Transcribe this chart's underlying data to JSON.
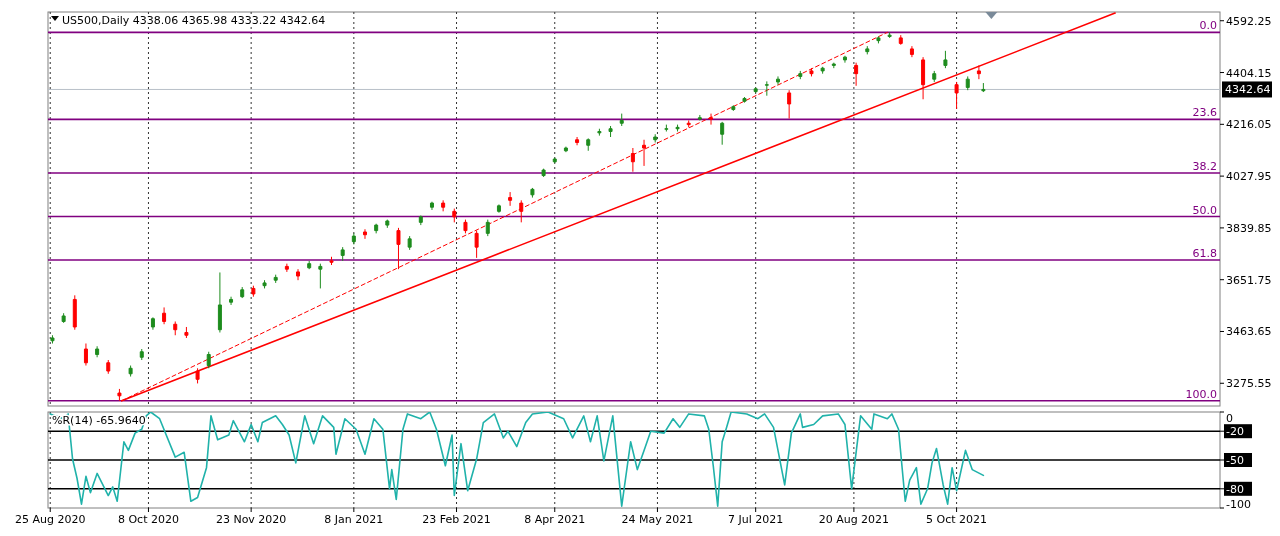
{
  "chart_data": [
    {
      "type": "candlestick",
      "title": "US500,Daily  4338.06 4365.98 4333.22 4342.64",
      "x": [
        "2020-08-26",
        "2020-08-31",
        "2020-09-05",
        "2020-09-10",
        "2020-09-15",
        "2020-09-20",
        "2020-09-25",
        "2020-09-30",
        "2020-10-05",
        "2020-10-10",
        "2020-10-15",
        "2020-10-20",
        "2020-10-25",
        "2020-10-30",
        "2020-11-04",
        "2020-11-09",
        "2020-11-14",
        "2020-11-19",
        "2020-11-24",
        "2020-11-29",
        "2020-12-04",
        "2020-12-09",
        "2020-12-14",
        "2020-12-19",
        "2020-12-24",
        "2020-12-29",
        "2021-01-03",
        "2021-01-08",
        "2021-01-13",
        "2021-01-18",
        "2021-01-23",
        "2021-01-28",
        "2021-02-02",
        "2021-02-07",
        "2021-02-12",
        "2021-02-17",
        "2021-02-22",
        "2021-02-27",
        "2021-03-04",
        "2021-03-09",
        "2021-03-14",
        "2021-03-19",
        "2021-03-24",
        "2021-03-29",
        "2021-04-03",
        "2021-04-08",
        "2021-04-13",
        "2021-04-18",
        "2021-04-23",
        "2021-04-28",
        "2021-05-03",
        "2021-05-08",
        "2021-05-13",
        "2021-05-18",
        "2021-05-23",
        "2021-05-28",
        "2021-06-02",
        "2021-06-07",
        "2021-06-12",
        "2021-06-17",
        "2021-06-22",
        "2021-06-27",
        "2021-07-02",
        "2021-07-07",
        "2021-07-12",
        "2021-07-17",
        "2021-07-22",
        "2021-07-27",
        "2021-08-01",
        "2021-08-06",
        "2021-08-11",
        "2021-08-16",
        "2021-08-21",
        "2021-08-26",
        "2021-08-31",
        "2021-09-05",
        "2021-09-10",
        "2021-09-15",
        "2021-09-20",
        "2021-09-25",
        "2021-09-30",
        "2021-10-05",
        "2021-10-10",
        "2021-10-15",
        "2021-10-17"
      ],
      "ohlc": [
        [
          3430,
          3450,
          3420,
          3440
        ],
        [
          3500,
          3530,
          3495,
          3520
        ],
        [
          3580,
          3595,
          3470,
          3480
        ],
        [
          3400,
          3420,
          3340,
          3350
        ],
        [
          3380,
          3410,
          3370,
          3400
        ],
        [
          3350,
          3360,
          3310,
          3320
        ],
        [
          3240,
          3255,
          3212,
          3230
        ],
        [
          3310,
          3340,
          3300,
          3330
        ],
        [
          3370,
          3400,
          3360,
          3390
        ],
        [
          3480,
          3515,
          3470,
          3510
        ],
        [
          3530,
          3551,
          3490,
          3500
        ],
        [
          3490,
          3500,
          3450,
          3470
        ],
        [
          3460,
          3480,
          3440,
          3450
        ],
        [
          3320,
          3330,
          3275,
          3290
        ],
        [
          3340,
          3390,
          3330,
          3380
        ],
        [
          3470,
          3678,
          3460,
          3560
        ],
        [
          3570,
          3590,
          3560,
          3580
        ],
        [
          3590,
          3625,
          3585,
          3615
        ],
        [
          3620,
          3630,
          3590,
          3600
        ],
        [
          3630,
          3650,
          3620,
          3640
        ],
        [
          3650,
          3670,
          3640,
          3660
        ],
        [
          3700,
          3710,
          3680,
          3690
        ],
        [
          3680,
          3690,
          3650,
          3665
        ],
        [
          3695,
          3720,
          3690,
          3710
        ],
        [
          3690,
          3710,
          3620,
          3700
        ],
        [
          3720,
          3735,
          3705,
          3715
        ],
        [
          3740,
          3770,
          3720,
          3760
        ],
        [
          3790,
          3820,
          3780,
          3810
        ],
        [
          3825,
          3835,
          3800,
          3815
        ],
        [
          3830,
          3855,
          3820,
          3850
        ],
        [
          3850,
          3870,
          3840,
          3865
        ],
        [
          3830,
          3840,
          3690,
          3780
        ],
        [
          3770,
          3810,
          3760,
          3800
        ],
        [
          3860,
          3885,
          3850,
          3880
        ],
        [
          3915,
          3935,
          3905,
          3930
        ],
        [
          3930,
          3940,
          3900,
          3915
        ],
        [
          3900,
          3910,
          3860,
          3880
        ],
        [
          3860,
          3870,
          3820,
          3830
        ],
        [
          3820,
          3830,
          3731,
          3770
        ],
        [
          3820,
          3870,
          3810,
          3860
        ],
        [
          3900,
          3925,
          3895,
          3920
        ],
        [
          3950,
          3970,
          3920,
          3940
        ],
        [
          3930,
          3940,
          3860,
          3900
        ],
        [
          3960,
          3985,
          3950,
          3980
        ],
        [
          4030,
          4055,
          4025,
          4050
        ],
        [
          4080,
          4095,
          4075,
          4090
        ],
        [
          4120,
          4135,
          4115,
          4130
        ],
        [
          4160,
          4170,
          4140,
          4150
        ],
        [
          4140,
          4165,
          4120,
          4160
        ],
        [
          4185,
          4200,
          4175,
          4190
        ],
        [
          4190,
          4210,
          4170,
          4200
        ],
        [
          4220,
          4255,
          4210,
          4230
        ],
        [
          4110,
          4130,
          4044,
          4080
        ],
        [
          4140,
          4160,
          4065,
          4130
        ],
        [
          4160,
          4180,
          4150,
          4170
        ],
        [
          4200,
          4215,
          4190,
          4200
        ],
        [
          4200,
          4215,
          4190,
          4205
        ],
        [
          4220,
          4230,
          4205,
          4215
        ],
        [
          4235,
          4250,
          4230,
          4240
        ],
        [
          4240,
          4255,
          4215,
          4235
        ],
        [
          4180,
          4225,
          4142,
          4220
        ],
        [
          4270,
          4285,
          4265,
          4280
        ],
        [
          4300,
          4315,
          4295,
          4310
        ],
        [
          4335,
          4350,
          4330,
          4345
        ],
        [
          4360,
          4372,
          4320,
          4360
        ],
        [
          4370,
          4390,
          4360,
          4380
        ],
        [
          4330,
          4340,
          4237,
          4290
        ],
        [
          4390,
          4410,
          4380,
          4400
        ],
        [
          4410,
          4420,
          4390,
          4400
        ],
        [
          4410,
          4425,
          4400,
          4420
        ],
        [
          4430,
          4440,
          4420,
          4435
        ],
        [
          4450,
          4465,
          4440,
          4460
        ],
        [
          4430,
          4440,
          4356,
          4400
        ],
        [
          4480,
          4500,
          4470,
          4490
        ],
        [
          4520,
          4535,
          4510,
          4530
        ],
        [
          4535,
          4550,
          4530,
          4540
        ],
        [
          4530,
          4540,
          4505,
          4510
        ],
        [
          4490,
          4500,
          4460,
          4470
        ],
        [
          4450,
          4460,
          4307,
          4360
        ],
        [
          4380,
          4410,
          4370,
          4400
        ],
        [
          4430,
          4483,
          4420,
          4450
        ],
        [
          4360,
          4370,
          4272,
          4330
        ],
        [
          4350,
          4390,
          4340,
          4380
        ],
        [
          4410,
          4430,
          4380,
          4400
        ],
        [
          4338.06,
          4365.98,
          4333.22,
          4342.64
        ]
      ],
      "series": [
        {
          "type": "line",
          "color": "#ff0000",
          "x": [
            "2020-09-26",
            "2021-12-15"
          ],
          "values": [
            3212,
            4620
          ]
        },
        {
          "type": "line",
          "color": "#ff0000",
          "line_style": "dashed",
          "x": [
            "2020-09-26",
            "2021-09-04"
          ],
          "values": [
            3212,
            4550
          ]
        }
      ],
      "xlim": [
        "2020-08-24",
        "2022-01-31"
      ],
      "xticks": [
        {
          "value": "2020-08-25",
          "label": null
        },
        {
          "value": "2020-10-08",
          "label": null
        },
        {
          "value": "2020-11-23",
          "label": null
        },
        {
          "value": "2021-01-08",
          "label": null
        },
        {
          "value": "2021-02-23",
          "label": null
        },
        {
          "value": "2021-04-08",
          "label": null
        },
        {
          "value": "2021-05-24",
          "label": null
        },
        {
          "value": "2021-07-07",
          "label": null
        },
        {
          "value": "2021-08-20",
          "label": null
        },
        {
          "value": "2021-10-05",
          "label": null
        }
      ],
      "ylim": [
        3193,
        4624
      ],
      "annotations": [
        {
          "text": "0.0",
          "y": 4550
        },
        {
          "text": "23.6",
          "y": 4234
        },
        {
          "text": "38.2",
          "y": 4039
        },
        {
          "text": "50.0",
          "y": 3881
        },
        {
          "text": "61.8",
          "y": 3723
        },
        {
          "text": "100.0",
          "y": 3212
        }
      ],
      "yticks": [
        4592.25,
        4404.15,
        4216.05,
        4027.95,
        3839.85,
        3651.75,
        3463.65,
        3275.55
      ],
      "tick_labels": "y",
      "grid": "x",
      "ref_lines": [
        {
          "axis": "y",
          "value": 4550,
          "color": "#800080"
        },
        {
          "axis": "y",
          "value": 4234,
          "color": "#800080"
        },
        {
          "axis": "y",
          "value": 4039,
          "color": "#800080"
        },
        {
          "axis": "y",
          "value": 3881,
          "color": "#800080"
        },
        {
          "axis": "y",
          "value": 3723,
          "color": "#800080"
        },
        {
          "axis": "y",
          "value": 3212,
          "color": "#800080"
        },
        {
          "axis": "y",
          "value": 4342.64,
          "label": "4342.64",
          "color": "#b8c0c8"
        }
      ]
    },
    {
      "type": "line",
      "title": "%R(14) -65.9640",
      "series": [
        {
          "color": "#20b2aa",
          "x": [
            "2020-08-25",
            "2020-08-31",
            "2020-09-02",
            "2020-09-04",
            "2020-09-06",
            "2020-09-08",
            "2020-09-10",
            "2020-09-12",
            "2020-09-15",
            "2020-09-20",
            "2020-09-22",
            "2020-09-24",
            "2020-09-27",
            "2020-09-29",
            "2020-10-02",
            "2020-10-05",
            "2020-10-07",
            "2020-10-09",
            "2020-10-13",
            "2020-10-20",
            "2020-10-24",
            "2020-10-27",
            "2020-10-30",
            "2020-11-03",
            "2020-11-05",
            "2020-11-08",
            "2020-11-13",
            "2020-11-15",
            "2020-11-20",
            "2020-11-23",
            "2020-11-26",
            "2020-11-28",
            "2020-12-04",
            "2020-12-07",
            "2020-12-10",
            "2020-12-13",
            "2020-12-17",
            "2020-12-21",
            "2020-12-25",
            "2020-12-30",
            "2020-12-31",
            "2021-01-04",
            "2021-01-09",
            "2021-01-13",
            "2021-01-17",
            "2021-01-21",
            "2021-01-24",
            "2021-01-25",
            "2021-01-27",
            "2021-01-30",
            "2021-02-01",
            "2021-02-07",
            "2021-02-11",
            "2021-02-14",
            "2021-02-18",
            "2021-02-21",
            "2021-02-22",
            "2021-02-25",
            "2021-02-28",
            "2021-03-04",
            "2021-03-07",
            "2021-03-12",
            "2021-03-16",
            "2021-03-18",
            "2021-03-22",
            "2021-03-26",
            "2021-03-29",
            "2021-04-05",
            "2021-04-12",
            "2021-04-16",
            "2021-04-21",
            "2021-04-24",
            "2021-04-27",
            "2021-04-30",
            "2021-05-04",
            "2021-05-08",
            "2021-05-12",
            "2021-05-15",
            "2021-05-18",
            "2021-05-21",
            "2021-05-27",
            "2021-05-31",
            "2021-06-03",
            "2021-06-07",
            "2021-06-14",
            "2021-06-16",
            "2021-06-18",
            "2021-06-20",
            "2021-06-22",
            "2021-06-24",
            "2021-06-26",
            "2021-07-03",
            "2021-07-08",
            "2021-07-11",
            "2021-07-15",
            "2021-07-20",
            "2021-07-23",
            "2021-07-27",
            "2021-07-28",
            "2021-08-02",
            "2021-08-06",
            "2021-08-13",
            "2021-08-16",
            "2021-08-19",
            "2021-08-23",
            "2021-08-28",
            "2021-08-29",
            "2021-09-04",
            "2021-09-06",
            "2021-09-09",
            "2021-09-12",
            "2021-09-14",
            "2021-09-17",
            "2021-09-19",
            "2021-09-22",
            "2021-09-24",
            "2021-09-26",
            "2021-09-29",
            "2021-10-01",
            "2021-10-03",
            "2021-10-05",
            "2021-10-09",
            "2021-10-12",
            "2021-10-17"
          ],
          "values": [
            -2,
            -7,
            -2,
            -49,
            -69,
            -96,
            -67,
            -84,
            -64,
            -87,
            -78,
            -93,
            -31,
            -40,
            -22,
            -18,
            -4,
            0,
            -7,
            -47,
            -42,
            -93,
            -89,
            -58,
            -4,
            -29,
            -24,
            -9,
            -31,
            -13,
            -31,
            -11,
            -4,
            -13,
            -24,
            -53,
            -4,
            -33,
            -4,
            -16,
            -44,
            -7,
            -18,
            -44,
            -7,
            -18,
            -80,
            -60,
            -91,
            -18,
            -2,
            -7,
            0,
            -18,
            -56,
            -24,
            -87,
            -33,
            -82,
            -49,
            -11,
            -2,
            -27,
            -20,
            -36,
            -11,
            -2,
            0,
            -7,
            -27,
            -4,
            -31,
            -4,
            -51,
            -4,
            -98,
            -31,
            -60,
            -40,
            -20,
            -22,
            -7,
            -16,
            -2,
            -4,
            -18,
            -56,
            -98,
            -31,
            -16,
            0,
            -2,
            -7,
            -2,
            -16,
            -76,
            -22,
            -2,
            -16,
            -13,
            -4,
            -2,
            -13,
            -80,
            -4,
            -18,
            -2,
            -7,
            -2,
            -18,
            -93,
            -71,
            -58,
            -96,
            -80,
            -53,
            -38,
            -76,
            -96,
            -58,
            -82,
            -40,
            -60,
            -66
          ]
        }
      ],
      "xlim": [
        "2020-08-24",
        "2022-01-31"
      ],
      "xticks": [
        {
          "value": "2020-08-25",
          "label": "25 Aug 2020"
        },
        {
          "value": "2020-10-08",
          "label": "8 Oct 2020"
        },
        {
          "value": "2020-11-23",
          "label": "23 Nov 2020"
        },
        {
          "value": "2021-01-08",
          "label": "8 Jan 2021"
        },
        {
          "value": "2021-02-23",
          "label": "23 Feb 2021"
        },
        {
          "value": "2021-04-08",
          "label": "8 Apr 2021"
        },
        {
          "value": "2021-05-24",
          "label": "24 May 2021"
        },
        {
          "value": "2021-07-07",
          "label": "7 Jul 2021"
        },
        {
          "value": "2021-08-20",
          "label": "20 Aug 2021"
        },
        {
          "value": "2021-10-05",
          "label": "5 Oct 2021"
        }
      ],
      "ylim": [
        -100,
        0
      ],
      "yticks": [
        0,
        -20,
        -50,
        -80,
        -100
      ],
      "grid": "x",
      "ref_lines": [
        {
          "axis": "y",
          "value": -20,
          "color": "#000000"
        },
        {
          "axis": "y",
          "value": -50,
          "color": "#000000"
        },
        {
          "axis": "y",
          "value": -80,
          "color": "#000000"
        }
      ]
    }
  ]
}
